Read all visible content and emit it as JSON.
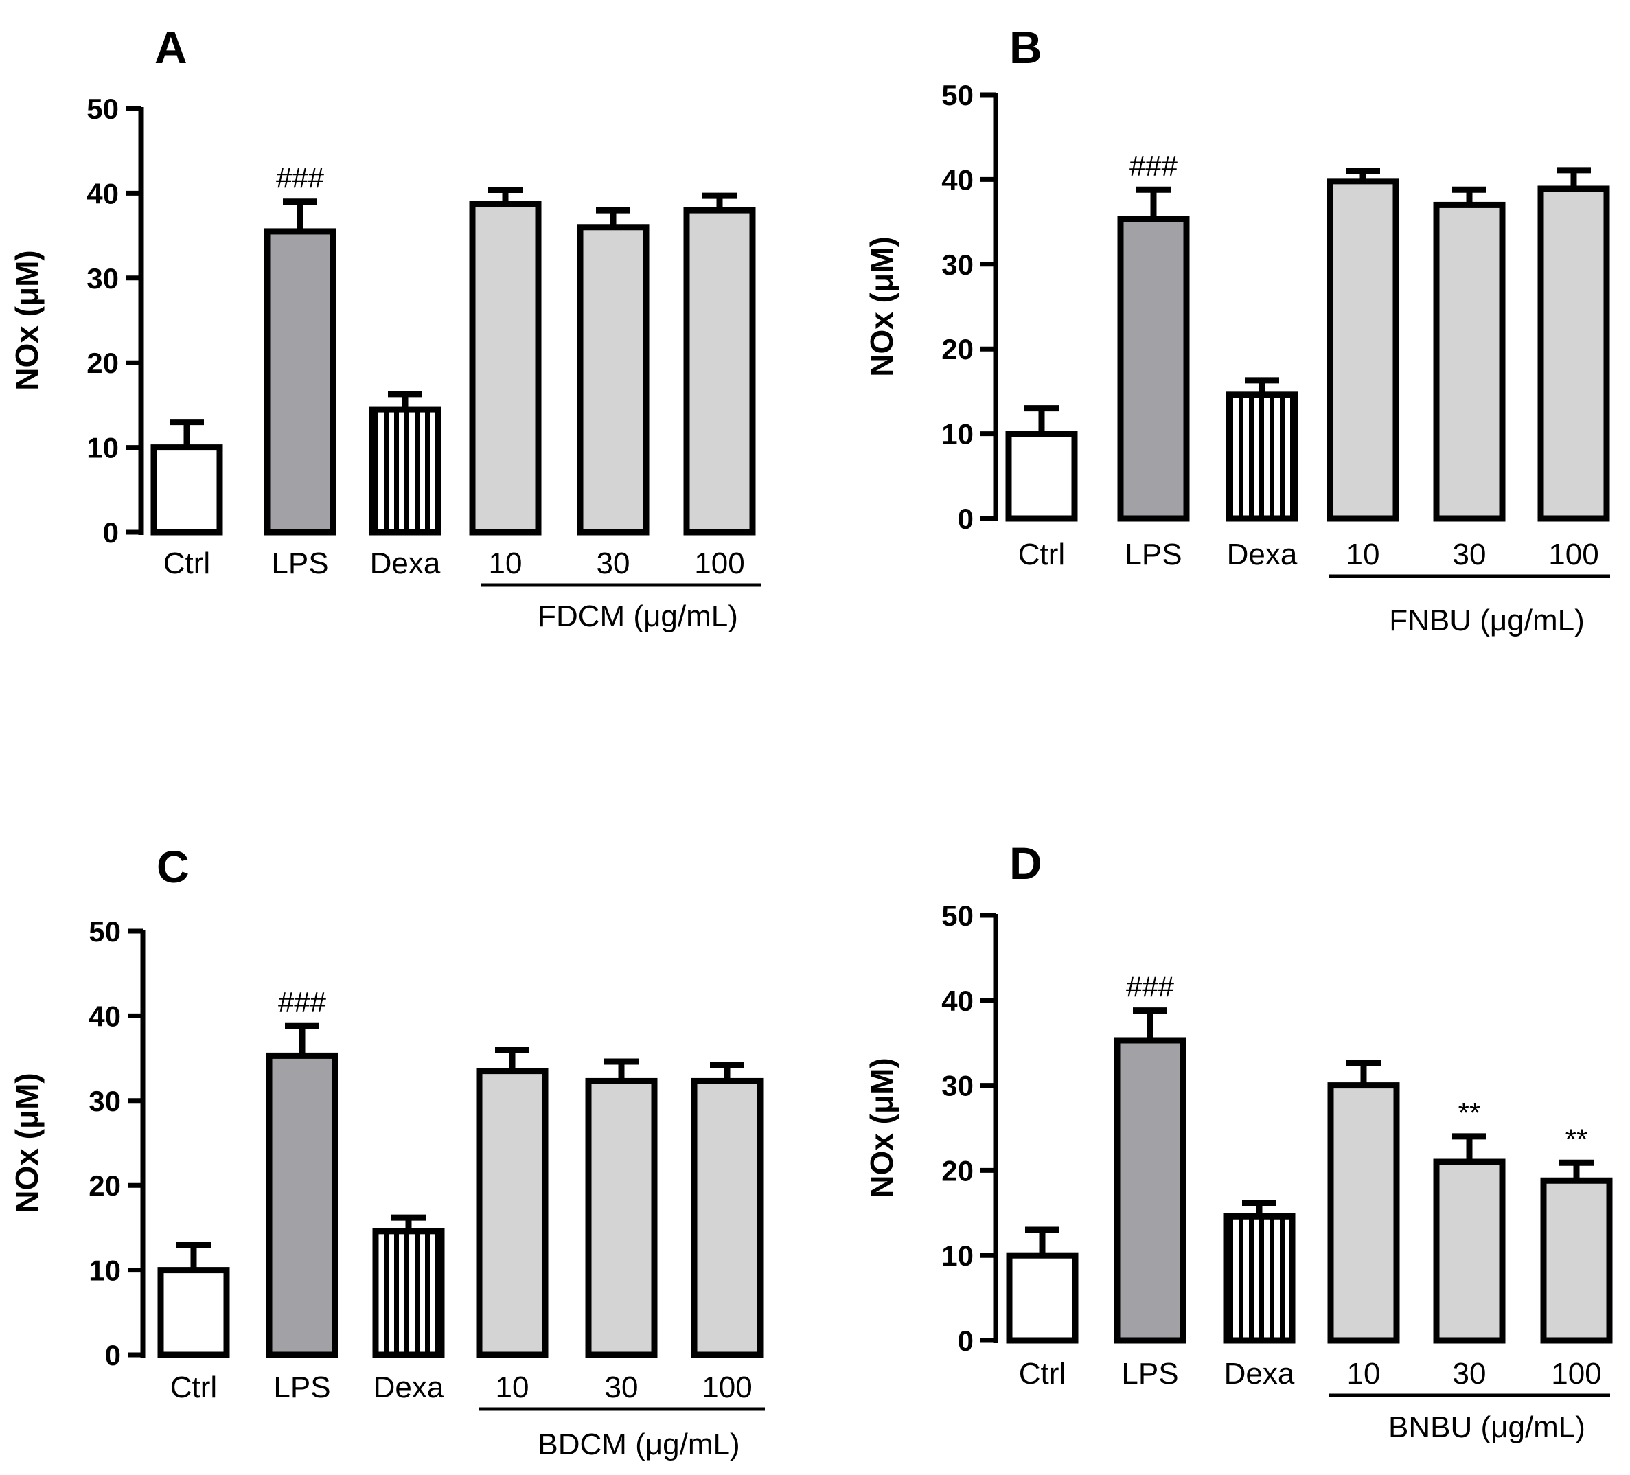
{
  "colors": {
    "ctrl": "#ffffff",
    "lps": "#a2a2a6",
    "dexa": "#ffffff",
    "treatment": "#d4d4d4",
    "stroke": "#000000"
  },
  "chart_data": [
    {
      "type": "bar",
      "panel_label": "A",
      "ylabel": "NOx (μM)",
      "ylim": [
        0,
        50
      ],
      "yticks": [
        "0",
        "10",
        "20",
        "30",
        "40",
        "50"
      ],
      "categories": [
        "Ctrl",
        "LPS",
        "Dexa",
        "10",
        "30",
        "100"
      ],
      "values": [
        10,
        35.5,
        14.5,
        38.7,
        36,
        38
      ],
      "errors": [
        3,
        3.5,
        1.8,
        1.7,
        2,
        1.7
      ],
      "annotations": [
        "",
        "###",
        "",
        "",
        "",
        ""
      ],
      "group_label": "FDCM (μg/mL)"
    },
    {
      "type": "bar",
      "panel_label": "B",
      "ylabel": "NOx (μM)",
      "ylim": [
        0,
        50
      ],
      "yticks": [
        "0",
        "10",
        "20",
        "30",
        "40",
        "50"
      ],
      "categories": [
        "Ctrl",
        "LPS",
        "Dexa",
        "10",
        "30",
        "100"
      ],
      "values": [
        10,
        35.3,
        14.6,
        39.8,
        37,
        38.9
      ],
      "errors": [
        3,
        3.5,
        1.7,
        1.2,
        1.8,
        2.2
      ],
      "annotations": [
        "",
        "###",
        "",
        "",
        "",
        ""
      ],
      "group_label": "FNBU (μg/mL)"
    },
    {
      "type": "bar",
      "panel_label": "C",
      "ylabel": "NOx (μM)",
      "ylim": [
        0,
        50
      ],
      "yticks": [
        "0",
        "10",
        "20",
        "30",
        "40",
        "50"
      ],
      "categories": [
        "Ctrl",
        "LPS",
        "Dexa",
        "10",
        "30",
        "100"
      ],
      "values": [
        10,
        35.3,
        14.6,
        33.5,
        32.3,
        32.3
      ],
      "errors": [
        3,
        3.5,
        1.6,
        2.5,
        2.3,
        1.9
      ],
      "annotations": [
        "",
        "###",
        "",
        "",
        "",
        ""
      ],
      "group_label": "BDCM (μg/mL)"
    },
    {
      "type": "bar",
      "panel_label": "D",
      "ylabel": "NOx (μM)",
      "ylim": [
        0,
        50
      ],
      "yticks": [
        "0",
        "10",
        "20",
        "30",
        "40",
        "50"
      ],
      "categories": [
        "Ctrl",
        "LPS",
        "Dexa",
        "10",
        "30",
        "100"
      ],
      "values": [
        10,
        35.3,
        14.6,
        30,
        21,
        18.8
      ],
      "errors": [
        3,
        3.5,
        1.6,
        2.6,
        3,
        2.1
      ],
      "annotations": [
        "",
        "###",
        "",
        "",
        "**",
        "**"
      ],
      "group_label": "BNBU (μg/mL)"
    }
  ]
}
